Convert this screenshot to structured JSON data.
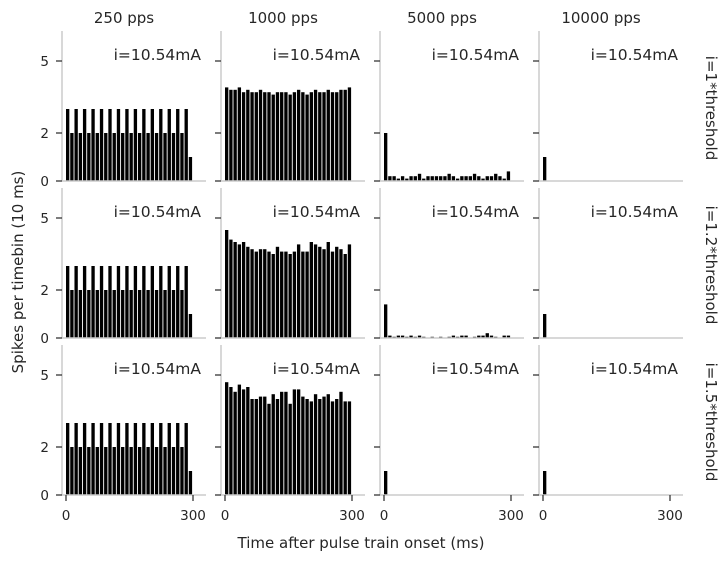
{
  "chart_data": {
    "type": "bar",
    "column_titles": [
      "250 pps",
      "1000 pps",
      "5000 pps",
      "10000 pps"
    ],
    "row_titles": [
      "i=1*threshold",
      "i=1.2*threshold",
      "i=1.5*threshold"
    ],
    "xlabel": "Time after pulse train onset (ms)",
    "ylabel": "Spikes per timebin (10 ms)",
    "annotation": "i=10.54mA",
    "xlim": [
      -5,
      330
    ],
    "ylim": [
      0,
      6.3
    ],
    "xticks": [
      0,
      300
    ],
    "yticks": [
      0,
      2,
      5
    ],
    "bin_width_ms": 10,
    "bar_color": "#000000",
    "panels": [
      [
        {
          "bin_starts": [
            0,
            10,
            20,
            30,
            40,
            50,
            60,
            70,
            80,
            90,
            100,
            110,
            120,
            130,
            140,
            150,
            160,
            170,
            180,
            190,
            200,
            210,
            220,
            230,
            240,
            250,
            260,
            270,
            280,
            290
          ],
          "values": [
            3.0,
            2.0,
            3.0,
            2.0,
            3.0,
            2.0,
            3.0,
            2.0,
            3.0,
            2.0,
            3.0,
            2.0,
            3.0,
            2.0,
            3.0,
            2.0,
            3.0,
            2.0,
            3.0,
            2.0,
            3.0,
            2.0,
            3.0,
            2.0,
            3.0,
            2.0,
            3.0,
            2.0,
            3.0,
            1.0
          ]
        },
        {
          "bin_starts": [
            0,
            10,
            20,
            30,
            40,
            50,
            60,
            70,
            80,
            90,
            100,
            110,
            120,
            130,
            140,
            150,
            160,
            170,
            180,
            190,
            200,
            210,
            220,
            230,
            240,
            250,
            260,
            270,
            280,
            290
          ],
          "values": [
            3.9,
            3.8,
            3.8,
            3.9,
            3.7,
            3.8,
            3.7,
            3.7,
            3.8,
            3.7,
            3.7,
            3.6,
            3.7,
            3.7,
            3.7,
            3.6,
            3.7,
            3.8,
            3.7,
            3.6,
            3.7,
            3.8,
            3.7,
            3.7,
            3.8,
            3.7,
            3.7,
            3.8,
            3.8,
            3.9
          ]
        },
        {
          "bin_starts": [
            0,
            10,
            20,
            30,
            40,
            50,
            60,
            70,
            80,
            90,
            100,
            110,
            120,
            130,
            140,
            150,
            160,
            170,
            180,
            190,
            200,
            210,
            220,
            230,
            240,
            250,
            260,
            270,
            280,
            290
          ],
          "values": [
            2.0,
            0.2,
            0.2,
            0.1,
            0.2,
            0.1,
            0.2,
            0.2,
            0.3,
            0.1,
            0.2,
            0.2,
            0.2,
            0.2,
            0.2,
            0.3,
            0.2,
            0.1,
            0.2,
            0.2,
            0.2,
            0.3,
            0.2,
            0.1,
            0.2,
            0.2,
            0.3,
            0.2,
            0.1,
            0.4
          ]
        },
        {
          "bin_starts": [
            0,
            10,
            20,
            30,
            40,
            50,
            60,
            70,
            80,
            90,
            100,
            110,
            120,
            130,
            140,
            150,
            160,
            170,
            180,
            190,
            200,
            210,
            220,
            230,
            240,
            250,
            260,
            270,
            280,
            290
          ],
          "values": [
            1.0,
            0,
            0,
            0,
            0,
            0,
            0,
            0,
            0,
            0,
            0,
            0,
            0,
            0,
            0,
            0,
            0,
            0,
            0,
            0,
            0,
            0,
            0,
            0,
            0,
            0,
            0,
            0,
            0,
            0
          ]
        }
      ],
      [
        {
          "bin_starts": [
            0,
            10,
            20,
            30,
            40,
            50,
            60,
            70,
            80,
            90,
            100,
            110,
            120,
            130,
            140,
            150,
            160,
            170,
            180,
            190,
            200,
            210,
            220,
            230,
            240,
            250,
            260,
            270,
            280,
            290
          ],
          "values": [
            3.0,
            2.0,
            3.0,
            2.0,
            3.0,
            2.0,
            3.0,
            2.0,
            3.0,
            2.0,
            3.0,
            2.0,
            3.0,
            2.0,
            3.0,
            2.0,
            3.0,
            2.0,
            3.0,
            2.0,
            3.0,
            2.0,
            3.0,
            2.0,
            3.0,
            2.0,
            3.0,
            2.0,
            3.0,
            1.0
          ]
        },
        {
          "bin_starts": [
            0,
            10,
            20,
            30,
            40,
            50,
            60,
            70,
            80,
            90,
            100,
            110,
            120,
            130,
            140,
            150,
            160,
            170,
            180,
            190,
            200,
            210,
            220,
            230,
            240,
            250,
            260,
            270,
            280,
            290
          ],
          "values": [
            4.5,
            4.1,
            4.0,
            3.9,
            4.0,
            3.8,
            3.7,
            3.6,
            3.7,
            3.7,
            3.6,
            3.5,
            3.8,
            3.6,
            3.6,
            3.5,
            3.6,
            3.9,
            3.6,
            3.6,
            4.0,
            3.9,
            3.8,
            3.7,
            4.0,
            3.6,
            3.8,
            3.7,
            3.5,
            3.9
          ]
        },
        {
          "bin_starts": [
            0,
            10,
            20,
            30,
            40,
            50,
            60,
            70,
            80,
            90,
            100,
            110,
            120,
            130,
            140,
            150,
            160,
            170,
            180,
            190,
            200,
            210,
            220,
            230,
            240,
            250,
            260,
            270,
            280,
            290
          ],
          "values": [
            1.4,
            0.1,
            0.05,
            0.1,
            0.1,
            0.05,
            0.1,
            0.05,
            0.1,
            0.05,
            0,
            0.05,
            0,
            0.05,
            0,
            0.05,
            0.1,
            0.05,
            0.1,
            0.1,
            0,
            0.05,
            0.1,
            0.1,
            0.2,
            0.1,
            0.05,
            0,
            0.1,
            0.1
          ]
        },
        {
          "bin_starts": [
            0,
            10,
            20,
            30,
            40,
            50,
            60,
            70,
            80,
            90,
            100,
            110,
            120,
            130,
            140,
            150,
            160,
            170,
            180,
            190,
            200,
            210,
            220,
            230,
            240,
            250,
            260,
            270,
            280,
            290
          ],
          "values": [
            1.0,
            0,
            0,
            0,
            0,
            0,
            0,
            0,
            0,
            0,
            0,
            0,
            0,
            0,
            0,
            0,
            0,
            0,
            0,
            0,
            0,
            0,
            0,
            0,
            0,
            0,
            0,
            0,
            0,
            0
          ]
        }
      ],
      [
        {
          "bin_starts": [
            0,
            10,
            20,
            30,
            40,
            50,
            60,
            70,
            80,
            90,
            100,
            110,
            120,
            130,
            140,
            150,
            160,
            170,
            180,
            190,
            200,
            210,
            220,
            230,
            240,
            250,
            260,
            270,
            280,
            290
          ],
          "values": [
            3.0,
            2.0,
            3.0,
            2.0,
            3.0,
            2.0,
            3.0,
            2.0,
            3.0,
            2.0,
            3.0,
            2.0,
            3.0,
            2.0,
            3.0,
            2.0,
            3.0,
            2.0,
            3.0,
            2.0,
            3.0,
            2.0,
            3.0,
            2.0,
            3.0,
            2.0,
            3.0,
            2.0,
            3.0,
            1.0
          ]
        },
        {
          "bin_starts": [
            0,
            10,
            20,
            30,
            40,
            50,
            60,
            70,
            80,
            90,
            100,
            110,
            120,
            130,
            140,
            150,
            160,
            170,
            180,
            190,
            200,
            210,
            220,
            230,
            240,
            250,
            260,
            270,
            280,
            290
          ],
          "values": [
            4.7,
            4.5,
            4.3,
            4.6,
            4.4,
            4.5,
            4.0,
            4.0,
            4.1,
            4.1,
            3.8,
            4.2,
            4.0,
            4.3,
            4.3,
            3.8,
            4.4,
            4.4,
            4.1,
            4.0,
            3.9,
            4.2,
            4.0,
            4.1,
            4.2,
            3.9,
            4.0,
            4.3,
            3.9,
            3.9
          ]
        },
        {
          "bin_starts": [
            0,
            10,
            20,
            30,
            40,
            50,
            60,
            70,
            80,
            90,
            100,
            110,
            120,
            130,
            140,
            150,
            160,
            170,
            180,
            190,
            200,
            210,
            220,
            230,
            240,
            250,
            260,
            270,
            280,
            290
          ],
          "values": [
            1.0,
            0,
            0,
            0,
            0,
            0,
            0,
            0,
            0,
            0,
            0,
            0,
            0,
            0,
            0,
            0,
            0,
            0,
            0,
            0,
            0,
            0,
            0,
            0,
            0,
            0,
            0,
            0,
            0,
            0
          ]
        },
        {
          "bin_starts": [
            0,
            10,
            20,
            30,
            40,
            50,
            60,
            70,
            80,
            90,
            100,
            110,
            120,
            130,
            140,
            150,
            160,
            170,
            180,
            190,
            200,
            210,
            220,
            230,
            240,
            250,
            260,
            270,
            280,
            290
          ],
          "values": [
            1.0,
            0,
            0,
            0,
            0,
            0,
            0,
            0,
            0,
            0,
            0,
            0,
            0,
            0,
            0,
            0,
            0,
            0,
            0,
            0,
            0,
            0,
            0,
            0,
            0,
            0,
            0,
            0,
            0,
            0
          ]
        }
      ]
    ]
  }
}
